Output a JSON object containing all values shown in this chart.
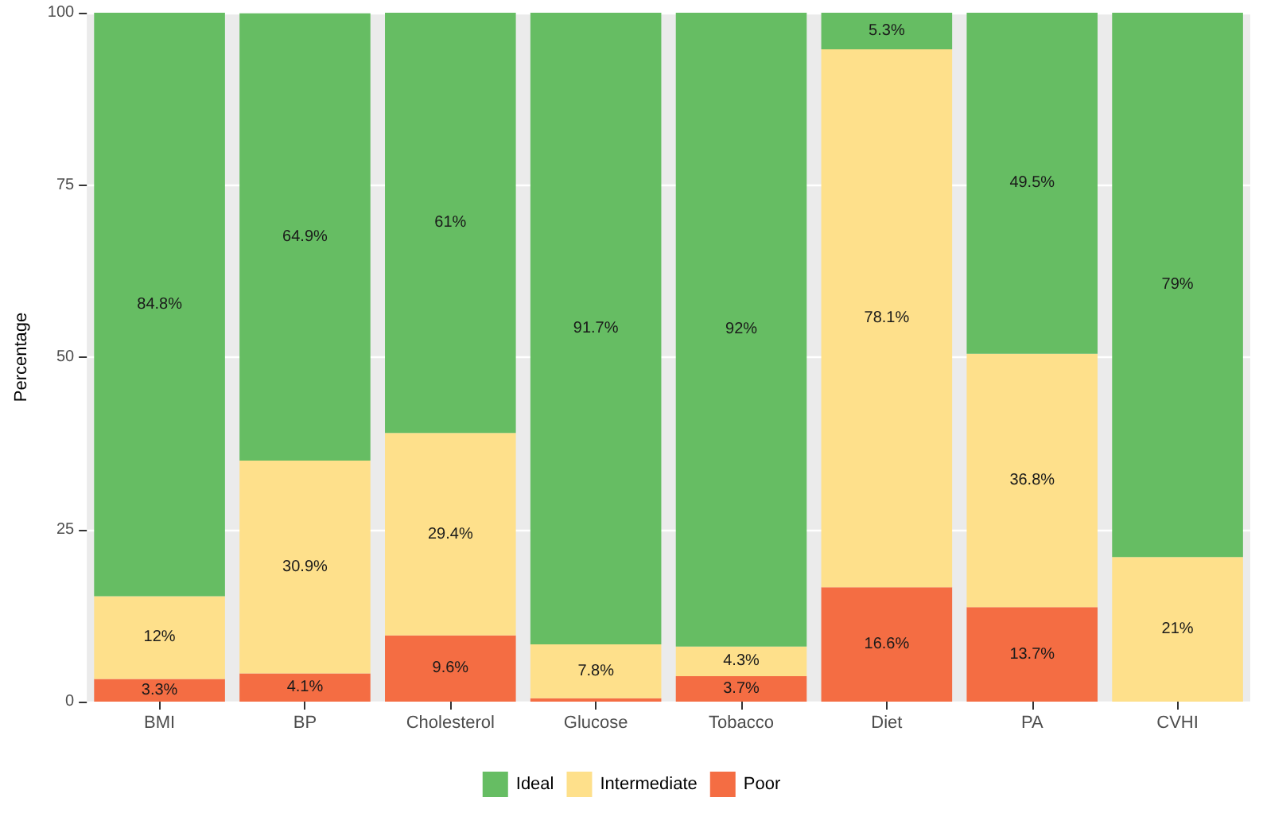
{
  "chart_data": {
    "type": "bar",
    "stacked": true,
    "ylabel": "Percentage",
    "categories": [
      "BMI",
      "BP",
      "Cholesterol",
      "Glucose",
      "Tobacco",
      "Diet",
      "PA",
      "CVHI"
    ],
    "series": [
      {
        "name": "Poor",
        "color": "#f46d43",
        "values": [
          3.3,
          4.1,
          9.6,
          0.5,
          3.7,
          16.6,
          13.7,
          0
        ],
        "value_labels": [
          "3.3%",
          "4.1%",
          "9.6%",
          null,
          "3.7%",
          "16.6%",
          "13.7%",
          null
        ]
      },
      {
        "name": "Intermediate",
        "color": "#fee08b",
        "values": [
          12,
          30.9,
          29.4,
          7.8,
          4.3,
          78.1,
          36.8,
          21
        ],
        "value_labels": [
          "12%",
          "30.9%",
          "29.4%",
          "7.8%",
          "4.3%",
          "78.1%",
          "36.8%",
          "21%"
        ]
      },
      {
        "name": "Ideal",
        "color": "#66bd63",
        "values": [
          84.8,
          64.9,
          61,
          91.7,
          92,
          5.3,
          49.5,
          79
        ],
        "value_labels": [
          "84.8%",
          "64.9%",
          "61%",
          "91.7%",
          "92%",
          "5.3%",
          "49.5%",
          "79%"
        ]
      }
    ],
    "ylim": [
      0,
      100
    ],
    "yticks": [
      0,
      25,
      50,
      75,
      100
    ],
    "grid": "y",
    "legend": "bottom"
  }
}
